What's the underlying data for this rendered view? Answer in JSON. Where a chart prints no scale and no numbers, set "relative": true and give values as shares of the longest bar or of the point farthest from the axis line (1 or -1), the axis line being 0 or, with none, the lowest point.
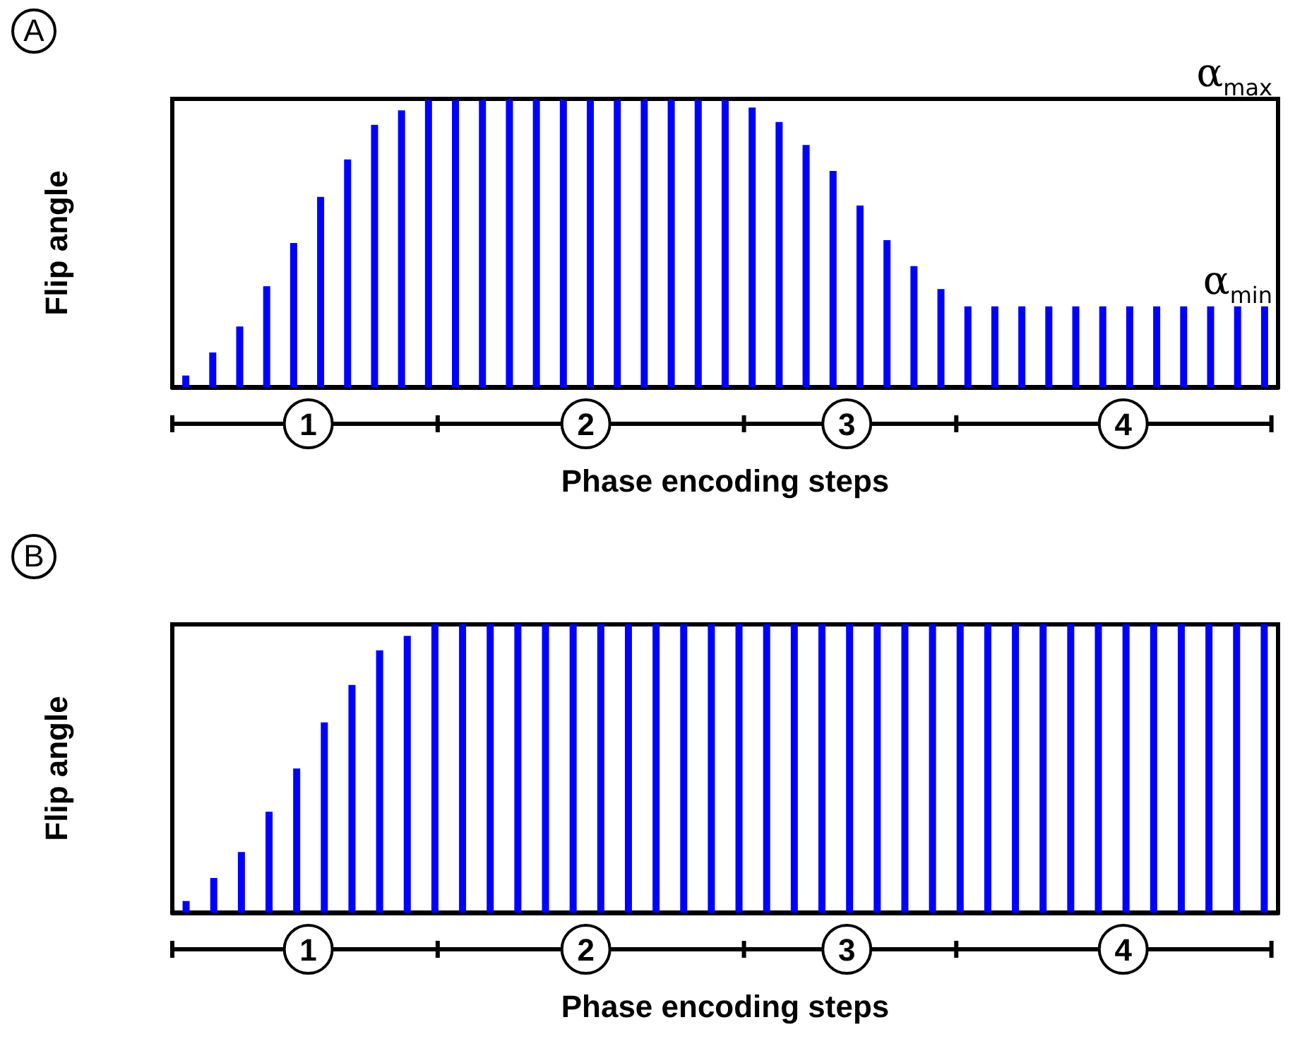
{
  "chart_data": [
    {
      "type": "bar",
      "title": "A",
      "xlabel": "Phase encoding steps",
      "ylabel": "Flip angle",
      "relative": true,
      "categories": [
        null,
        null,
        null,
        null,
        null,
        null,
        null,
        null,
        null,
        null,
        null,
        null,
        null,
        null,
        null,
        null,
        null,
        null,
        null,
        null,
        null,
        null,
        null,
        null,
        null,
        null,
        null,
        null,
        null,
        null,
        null,
        null,
        null,
        null,
        null,
        null,
        null,
        null,
        null,
        null,
        null
      ],
      "series": [
        {
          "color": "#0000ff",
          "values": [
            0.04,
            0.12,
            0.21,
            0.35,
            0.5,
            0.66,
            0.79,
            0.91,
            0.96,
            1,
            1,
            1,
            1,
            1,
            1,
            1,
            1,
            1,
            1,
            1,
            1,
            0.97,
            0.92,
            0.84,
            0.75,
            0.63,
            0.51,
            0.42,
            0.34,
            0.28,
            0.28,
            0.28,
            0.28,
            0.28,
            0.28,
            0.28,
            0.28,
            0.28,
            0.28,
            0.28,
            0.28
          ]
        }
      ],
      "ref_lines": [
        {
          "axis": "y",
          "value": 1,
          "label": "α$_{max}$",
          "color": "#000000",
          "line_style": "dashed"
        }
      ],
      "annotations": [
        {
          "text": "α$_{min}$",
          "y": 0.28
        },
        "1",
        "2",
        "3",
        "4"
      ]
    },
    {
      "type": "bar",
      "title": "B",
      "xlabel": "Phase encoding steps",
      "ylabel": "Flip angle",
      "relative": true,
      "categories": [
        null,
        null,
        null,
        null,
        null,
        null,
        null,
        null,
        null,
        null,
        null,
        null,
        null,
        null,
        null,
        null,
        null,
        null,
        null,
        null,
        null,
        null,
        null,
        null,
        null,
        null,
        null,
        null,
        null,
        null,
        null,
        null,
        null,
        null,
        null,
        null,
        null,
        null,
        null,
        null
      ],
      "series": [
        {
          "color": "#0000ff",
          "values": [
            0.04,
            0.12,
            0.21,
            0.35,
            0.5,
            0.66,
            0.79,
            0.91,
            0.96,
            1,
            1,
            1,
            1,
            1,
            1,
            1,
            1,
            1,
            1,
            1,
            1,
            1,
            1,
            1,
            1,
            1,
            1,
            1,
            1,
            1,
            1,
            1,
            1,
            1,
            1,
            1,
            1,
            1,
            1,
            1
          ]
        }
      ],
      "annotations": [
        "1",
        "2",
        "3",
        "4"
      ]
    }
  ]
}
